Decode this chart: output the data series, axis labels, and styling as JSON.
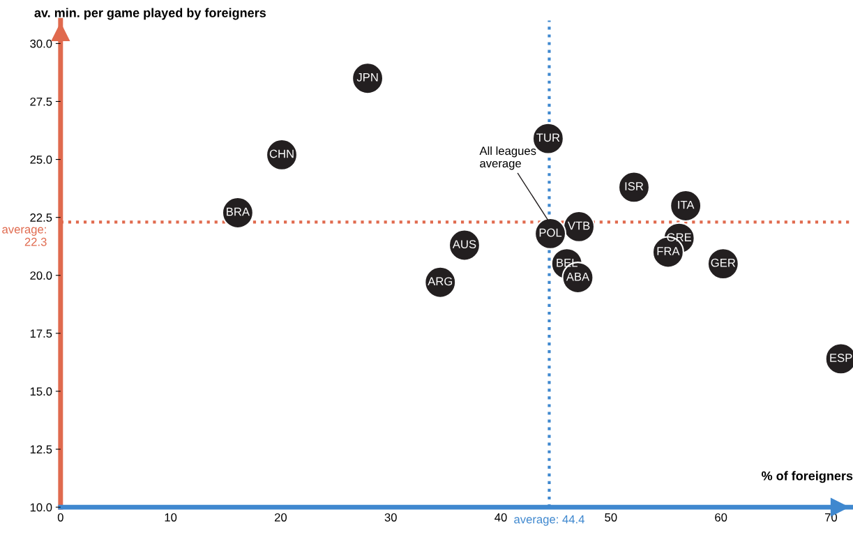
{
  "chart_data": {
    "type": "scatter",
    "xlabel": "% of foreigners",
    "ylabel": "av. min. per game played by foreigners",
    "xlim": [
      0,
      72
    ],
    "ylim": [
      10,
      31
    ],
    "xticks": [
      0,
      10,
      20,
      30,
      40,
      50,
      60,
      70
    ],
    "yticks": [
      {
        "value": 10,
        "label": "10.0"
      },
      {
        "value": 12.5,
        "label": "12.5"
      },
      {
        "value": 15,
        "label": "15.0"
      },
      {
        "value": 17.5,
        "label": "17.5"
      },
      {
        "value": 20,
        "label": "20.0"
      },
      {
        "value": 22.5,
        "label": "22.5"
      },
      {
        "value": 25,
        "label": "25.0"
      },
      {
        "value": 27.5,
        "label": "27.5"
      },
      {
        "value": 30,
        "label": "30.0"
      }
    ],
    "grid": false,
    "legend": false,
    "marker": "circle",
    "series": [
      {
        "name": "JPN",
        "color": "#231f20",
        "x": [
          27.9
        ],
        "values": [
          28.5
        ]
      },
      {
        "name": "CHN",
        "color": "#231f20",
        "x": [
          20.1
        ],
        "values": [
          25.2
        ]
      },
      {
        "name": "BRA",
        "color": "#231f20",
        "x": [
          16.1
        ],
        "values": [
          22.7
        ]
      },
      {
        "name": "TUR",
        "color": "#231f20",
        "x": [
          44.3
        ],
        "values": [
          25.9
        ]
      },
      {
        "name": "ISR",
        "color": "#231f20",
        "x": [
          52.1
        ],
        "values": [
          23.8
        ]
      },
      {
        "name": "ITA",
        "color": "#231f20",
        "x": [
          56.8
        ],
        "values": [
          23.0
        ]
      },
      {
        "name": "VTB",
        "color": "#231f20",
        "x": [
          47.1
        ],
        "values": [
          22.1
        ]
      },
      {
        "name": "POL",
        "color": "#231f20",
        "x": [
          44.5
        ],
        "values": [
          21.8
        ]
      },
      {
        "name": "GRE",
        "color": "#231f20",
        "x": [
          56.2
        ],
        "values": [
          21.6
        ]
      },
      {
        "name": "FRA",
        "color": "#231f20",
        "x": [
          55.2
        ],
        "values": [
          21.0
        ]
      },
      {
        "name": "GER",
        "color": "#231f20",
        "x": [
          60.2
        ],
        "values": [
          20.5
        ]
      },
      {
        "name": "BEL",
        "color": "#231f20",
        "x": [
          46.0
        ],
        "values": [
          20.5
        ]
      },
      {
        "name": "ABA",
        "color": "#231f20",
        "x": [
          47.0
        ],
        "values": [
          19.9
        ]
      },
      {
        "name": "AUS",
        "color": "#231f20",
        "x": [
          36.7
        ],
        "values": [
          21.3
        ]
      },
      {
        "name": "ARG",
        "color": "#231f20",
        "x": [
          34.5
        ],
        "values": [
          19.7
        ]
      },
      {
        "name": "ESP",
        "color": "#231f20",
        "x": [
          70.9
        ],
        "values": [
          16.4
        ]
      }
    ],
    "ref_lines": [
      {
        "axis": "x",
        "value": 44.4,
        "label": "average: 44.4",
        "color": "#3f88cf",
        "line_style": "dotted"
      },
      {
        "axis": "y",
        "value": 22.3,
        "label": "average:\n22.3",
        "color": "#e06a4e",
        "line_style": "dotted"
      }
    ],
    "annotations": [
      {
        "text": "All leagues\naverage",
        "x": 44.4,
        "y": 22.3
      }
    ]
  }
}
